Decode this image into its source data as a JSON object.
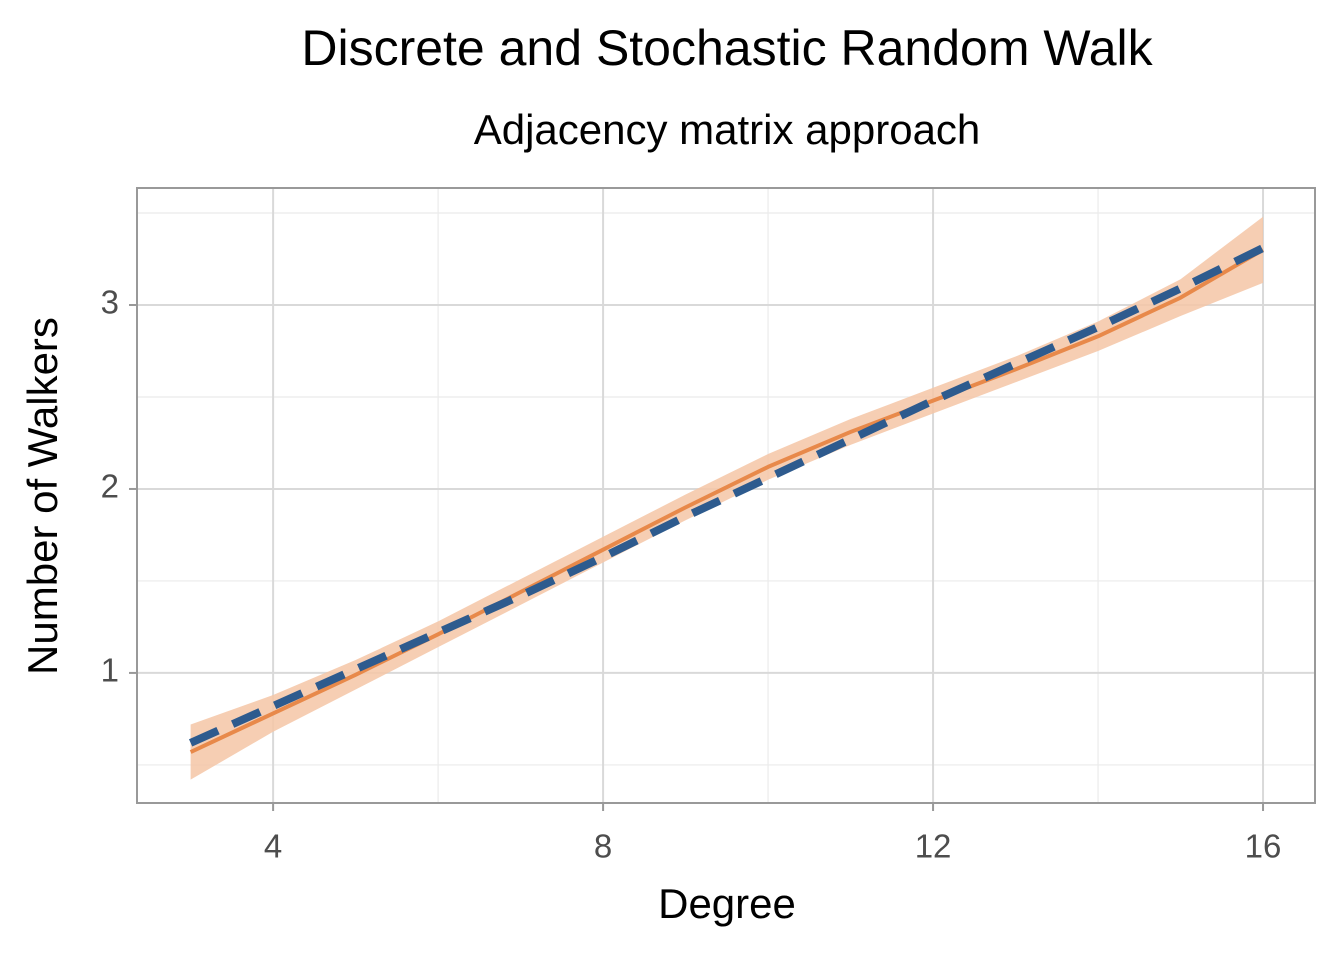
{
  "chart_data": {
    "type": "line",
    "title": "Discrete and Stochastic Random Walk",
    "subtitle": "Adjacency matrix approach",
    "x_label": "Degree",
    "y_label": "Number of Walkers",
    "x": [
      3,
      4,
      5,
      6,
      7,
      8,
      9,
      10,
      11,
      12,
      13,
      14,
      15,
      16
    ],
    "series": [
      {
        "color": "#e8894a",
        "band_color": "#f4c6a6",
        "style": "solid",
        "values": [
          0.57,
          0.78,
          0.99,
          1.21,
          1.44,
          1.67,
          1.9,
          2.12,
          2.31,
          2.48,
          2.65,
          2.83,
          3.04,
          3.3
        ],
        "lower": [
          0.42,
          0.68,
          0.91,
          1.14,
          1.37,
          1.6,
          1.83,
          2.05,
          2.24,
          2.41,
          2.58,
          2.75,
          2.94,
          3.12
        ],
        "upper": [
          0.72,
          0.88,
          1.07,
          1.28,
          1.51,
          1.74,
          1.97,
          2.19,
          2.38,
          2.55,
          2.72,
          2.91,
          3.14,
          3.48
        ]
      },
      {
        "color": "#2e5b8e",
        "style": "dashed",
        "values": [
          0.62,
          0.82,
          1.02,
          1.22,
          1.42,
          1.63,
          1.85,
          2.06,
          2.27,
          2.48,
          2.68,
          2.88,
          3.09,
          3.31
        ]
      }
    ],
    "xlim": [
      2.35,
      16.63
    ],
    "xticks": [
      4,
      8,
      12,
      16
    ],
    "ylim": [
      0.293,
      3.636
    ],
    "yticks": [
      1,
      2,
      3
    ],
    "grid": true
  }
}
